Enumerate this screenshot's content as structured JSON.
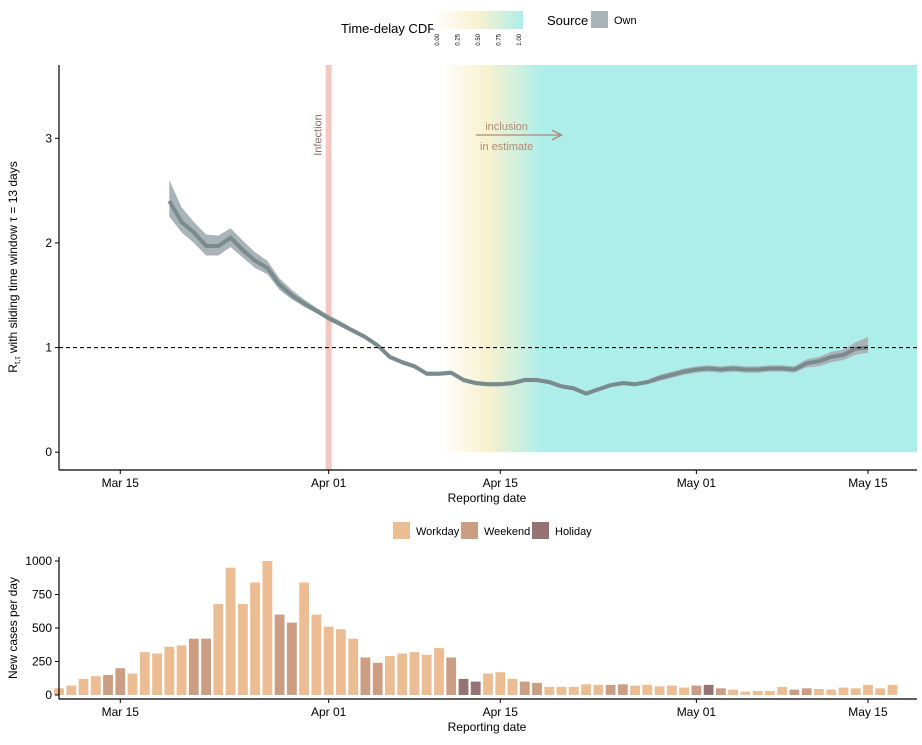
{
  "chart_data": [
    {
      "type": "line",
      "legend": {
        "cdf_title": "Time-delay CDF",
        "cdf_ticks": [
          "0.00",
          "0.25",
          "0.50",
          "0.75",
          "1.00"
        ],
        "source_title": "Source",
        "source_items": [
          {
            "name": "Own",
            "color": "#a9b4b9"
          }
        ],
        "placement": "top"
      },
      "xlabel": "Reporting date",
      "ylabel_main": "R",
      "ylabel_sub": "t,τ",
      "ylabel_rest": " with sliding time window  τ = 13 days",
      "x_ticks": [
        {
          "day": 14,
          "label": "Mar 15"
        },
        {
          "day": 31,
          "label": "Apr 01"
        },
        {
          "day": 45,
          "label": "Apr 15"
        },
        {
          "day": 61,
          "label": "May 01"
        },
        {
          "day": 75,
          "label": "May 15"
        }
      ],
      "xlim": [
        9,
        79
      ],
      "y_ticks": [
        0,
        1,
        2,
        3
      ],
      "ylim": [
        -0.17,
        3.7
      ],
      "reference_line": 1,
      "infection_marker": {
        "day": 31,
        "label": "Infection",
        "color": "#f4c6c0"
      },
      "inclusion_note": {
        "line1": "inclusion",
        "line2": "in estimate",
        "from_day": 43,
        "to_day": 50,
        "color": "#b08a70"
      },
      "cdf_shading": {
        "colors": [
          "#ffffff",
          "#f7f1cf",
          "#aeeeea"
        ],
        "days": [
          40,
          44,
          48.5,
          79
        ],
        "values": [
          0,
          0.5,
          1,
          1
        ]
      },
      "series": [
        {
          "band_color": "#a9b4b9",
          "core_color": "#7a8b8e",
          "x": [
            18,
            19,
            20,
            21,
            22,
            23,
            24,
            25,
            26,
            27,
            28,
            29,
            30,
            31,
            32,
            33,
            34,
            35,
            36,
            37,
            38,
            39,
            40,
            41,
            42,
            43,
            44,
            45,
            46,
            47,
            48,
            49,
            50,
            51,
            52,
            53,
            54,
            55,
            56,
            57,
            58,
            59,
            60,
            61,
            62,
            63,
            64,
            65,
            66,
            67,
            68,
            69,
            70,
            71,
            72,
            73,
            74,
            75
          ],
          "y": [
            2.4,
            2.2,
            2.1,
            1.97,
            1.97,
            2.05,
            1.93,
            1.83,
            1.76,
            1.6,
            1.5,
            1.42,
            1.35,
            1.28,
            1.22,
            1.16,
            1.1,
            1.02,
            0.91,
            0.86,
            0.82,
            0.75,
            0.75,
            0.76,
            0.69,
            0.66,
            0.65,
            0.65,
            0.66,
            0.69,
            0.69,
            0.67,
            0.63,
            0.61,
            0.56,
            0.6,
            0.64,
            0.66,
            0.65,
            0.67,
            0.71,
            0.74,
            0.77,
            0.79,
            0.8,
            0.79,
            0.8,
            0.79,
            0.79,
            0.8,
            0.8,
            0.79,
            0.85,
            0.87,
            0.91,
            0.93,
            0.99,
            1.0
          ],
          "lower": [
            2.25,
            2.1,
            2.0,
            1.88,
            1.88,
            1.96,
            1.86,
            1.76,
            1.7,
            1.55,
            1.46,
            1.39,
            1.33,
            1.26,
            1.2,
            1.14,
            1.08,
            1.0,
            0.89,
            0.84,
            0.8,
            0.73,
            0.73,
            0.74,
            0.67,
            0.64,
            0.63,
            0.63,
            0.64,
            0.67,
            0.67,
            0.65,
            0.61,
            0.59,
            0.54,
            0.58,
            0.62,
            0.64,
            0.63,
            0.65,
            0.68,
            0.71,
            0.74,
            0.76,
            0.77,
            0.76,
            0.77,
            0.76,
            0.76,
            0.77,
            0.77,
            0.76,
            0.81,
            0.82,
            0.86,
            0.88,
            0.93,
            0.95
          ],
          "upper": [
            2.6,
            2.34,
            2.2,
            2.08,
            2.07,
            2.14,
            2.02,
            1.91,
            1.83,
            1.66,
            1.55,
            1.46,
            1.38,
            1.31,
            1.25,
            1.18,
            1.12,
            1.04,
            0.93,
            0.88,
            0.84,
            0.77,
            0.77,
            0.78,
            0.71,
            0.68,
            0.67,
            0.67,
            0.68,
            0.71,
            0.71,
            0.69,
            0.65,
            0.63,
            0.58,
            0.62,
            0.66,
            0.68,
            0.67,
            0.69,
            0.74,
            0.77,
            0.8,
            0.82,
            0.83,
            0.82,
            0.83,
            0.82,
            0.82,
            0.83,
            0.83,
            0.82,
            0.89,
            0.91,
            0.96,
            0.98,
            1.05,
            1.1
          ]
        }
      ]
    },
    {
      "type": "bar",
      "legend": {
        "items": [
          {
            "name": "Workday",
            "color": "#ecbc93"
          },
          {
            "name": "Weekend",
            "color": "#cb9e84"
          },
          {
            "name": "Holiday",
            "color": "#957373"
          }
        ],
        "placement": "top"
      },
      "xlabel": "Reporting date",
      "ylabel": "New cases per day",
      "x_ticks": [
        {
          "day": 14,
          "label": "Mar 15"
        },
        {
          "day": 31,
          "label": "Apr 01"
        },
        {
          "day": 45,
          "label": "Apr 15"
        },
        {
          "day": 61,
          "label": "May 01"
        },
        {
          "day": 75,
          "label": "May 15"
        }
      ],
      "xlim": [
        9,
        79
      ],
      "y_ticks": [
        0,
        250,
        500,
        750,
        1000
      ],
      "ylim": [
        -30,
        1030
      ],
      "first_day": 9,
      "values": [
        50,
        70,
        120,
        140,
        150,
        200,
        160,
        320,
        310,
        360,
        370,
        420,
        420,
        680,
        950,
        680,
        840,
        1000,
        600,
        540,
        840,
        600,
        510,
        490,
        420,
        280,
        240,
        290,
        310,
        320,
        300,
        350,
        280,
        120,
        100,
        160,
        170,
        120,
        100,
        90,
        60,
        60,
        60,
        80,
        75,
        75,
        80,
        70,
        75,
        65,
        70,
        55,
        70,
        75,
        50,
        40,
        25,
        30,
        30,
        60,
        40,
        50,
        45,
        40,
        55,
        50,
        75,
        50,
        75
      ],
      "day_types": [
        "W",
        "W",
        "W",
        "W",
        "E",
        "E",
        "W",
        "W",
        "W",
        "W",
        "W",
        "E",
        "E",
        "W",
        "W",
        "W",
        "W",
        "W",
        "E",
        "E",
        "W",
        "W",
        "W",
        "W",
        "W",
        "E",
        "E",
        "W",
        "W",
        "W",
        "W",
        "W",
        "E",
        "H",
        "H",
        "W",
        "W",
        "W",
        "E",
        "E",
        "W",
        "W",
        "W",
        "W",
        "W",
        "E",
        "E",
        "W",
        "W",
        "W",
        "W",
        "W",
        "E",
        "H",
        "E",
        "W",
        "W",
        "W",
        "W",
        "W",
        "E",
        "E",
        "W",
        "W",
        "W",
        "W",
        "W",
        "W",
        "W"
      ]
    }
  ]
}
